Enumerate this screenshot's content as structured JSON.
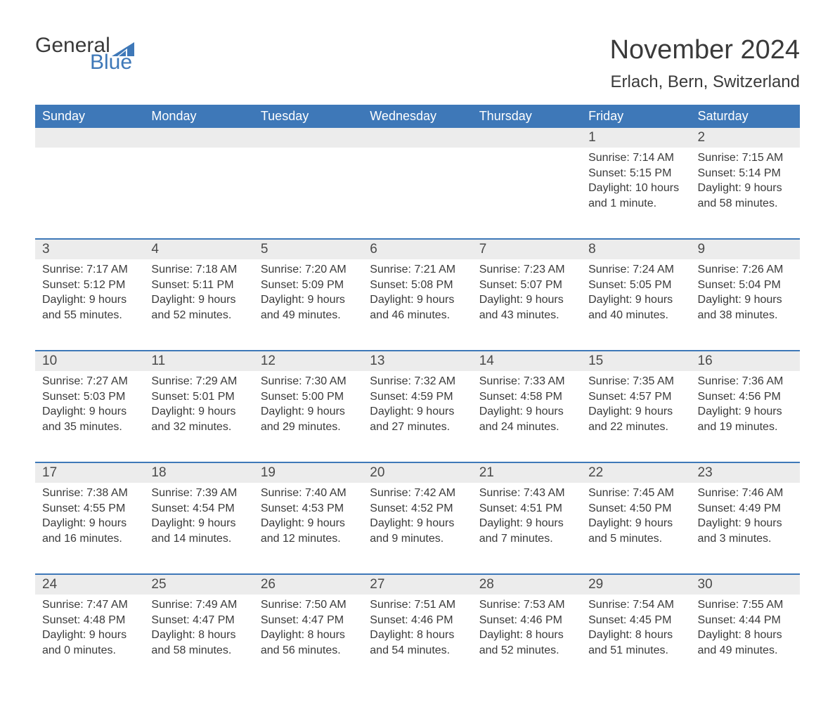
{
  "logo": {
    "text1": "General",
    "text2": "Blue",
    "triangle_color": "#3e78b8"
  },
  "title": "November 2024",
  "location": "Erlach, Bern, Switzerland",
  "colors": {
    "header_bg": "#3e78b8",
    "header_text": "#ffffff",
    "daynum_bg": "#ececec",
    "row_border": "#3e78b8",
    "body_text": "#3a3a3a",
    "page_bg": "#ffffff"
  },
  "fonts": {
    "title_size_pt": 38,
    "location_size_pt": 24,
    "header_size_pt": 18,
    "daynum_size_pt": 19,
    "body_size_pt": 16
  },
  "columns": [
    "Sunday",
    "Monday",
    "Tuesday",
    "Wednesday",
    "Thursday",
    "Friday",
    "Saturday"
  ],
  "weeks": [
    [
      null,
      null,
      null,
      null,
      null,
      {
        "n": "1",
        "sunrise": "Sunrise: 7:14 AM",
        "sunset": "Sunset: 5:15 PM",
        "day1": "Daylight: 10 hours",
        "day2": "and 1 minute."
      },
      {
        "n": "2",
        "sunrise": "Sunrise: 7:15 AM",
        "sunset": "Sunset: 5:14 PM",
        "day1": "Daylight: 9 hours",
        "day2": "and 58 minutes."
      }
    ],
    [
      {
        "n": "3",
        "sunrise": "Sunrise: 7:17 AM",
        "sunset": "Sunset: 5:12 PM",
        "day1": "Daylight: 9 hours",
        "day2": "and 55 minutes."
      },
      {
        "n": "4",
        "sunrise": "Sunrise: 7:18 AM",
        "sunset": "Sunset: 5:11 PM",
        "day1": "Daylight: 9 hours",
        "day2": "and 52 minutes."
      },
      {
        "n": "5",
        "sunrise": "Sunrise: 7:20 AM",
        "sunset": "Sunset: 5:09 PM",
        "day1": "Daylight: 9 hours",
        "day2": "and 49 minutes."
      },
      {
        "n": "6",
        "sunrise": "Sunrise: 7:21 AM",
        "sunset": "Sunset: 5:08 PM",
        "day1": "Daylight: 9 hours",
        "day2": "and 46 minutes."
      },
      {
        "n": "7",
        "sunrise": "Sunrise: 7:23 AM",
        "sunset": "Sunset: 5:07 PM",
        "day1": "Daylight: 9 hours",
        "day2": "and 43 minutes."
      },
      {
        "n": "8",
        "sunrise": "Sunrise: 7:24 AM",
        "sunset": "Sunset: 5:05 PM",
        "day1": "Daylight: 9 hours",
        "day2": "and 40 minutes."
      },
      {
        "n": "9",
        "sunrise": "Sunrise: 7:26 AM",
        "sunset": "Sunset: 5:04 PM",
        "day1": "Daylight: 9 hours",
        "day2": "and 38 minutes."
      }
    ],
    [
      {
        "n": "10",
        "sunrise": "Sunrise: 7:27 AM",
        "sunset": "Sunset: 5:03 PM",
        "day1": "Daylight: 9 hours",
        "day2": "and 35 minutes."
      },
      {
        "n": "11",
        "sunrise": "Sunrise: 7:29 AM",
        "sunset": "Sunset: 5:01 PM",
        "day1": "Daylight: 9 hours",
        "day2": "and 32 minutes."
      },
      {
        "n": "12",
        "sunrise": "Sunrise: 7:30 AM",
        "sunset": "Sunset: 5:00 PM",
        "day1": "Daylight: 9 hours",
        "day2": "and 29 minutes."
      },
      {
        "n": "13",
        "sunrise": "Sunrise: 7:32 AM",
        "sunset": "Sunset: 4:59 PM",
        "day1": "Daylight: 9 hours",
        "day2": "and 27 minutes."
      },
      {
        "n": "14",
        "sunrise": "Sunrise: 7:33 AM",
        "sunset": "Sunset: 4:58 PM",
        "day1": "Daylight: 9 hours",
        "day2": "and 24 minutes."
      },
      {
        "n": "15",
        "sunrise": "Sunrise: 7:35 AM",
        "sunset": "Sunset: 4:57 PM",
        "day1": "Daylight: 9 hours",
        "day2": "and 22 minutes."
      },
      {
        "n": "16",
        "sunrise": "Sunrise: 7:36 AM",
        "sunset": "Sunset: 4:56 PM",
        "day1": "Daylight: 9 hours",
        "day2": "and 19 minutes."
      }
    ],
    [
      {
        "n": "17",
        "sunrise": "Sunrise: 7:38 AM",
        "sunset": "Sunset: 4:55 PM",
        "day1": "Daylight: 9 hours",
        "day2": "and 16 minutes."
      },
      {
        "n": "18",
        "sunrise": "Sunrise: 7:39 AM",
        "sunset": "Sunset: 4:54 PM",
        "day1": "Daylight: 9 hours",
        "day2": "and 14 minutes."
      },
      {
        "n": "19",
        "sunrise": "Sunrise: 7:40 AM",
        "sunset": "Sunset: 4:53 PM",
        "day1": "Daylight: 9 hours",
        "day2": "and 12 minutes."
      },
      {
        "n": "20",
        "sunrise": "Sunrise: 7:42 AM",
        "sunset": "Sunset: 4:52 PM",
        "day1": "Daylight: 9 hours",
        "day2": "and 9 minutes."
      },
      {
        "n": "21",
        "sunrise": "Sunrise: 7:43 AM",
        "sunset": "Sunset: 4:51 PM",
        "day1": "Daylight: 9 hours",
        "day2": "and 7 minutes."
      },
      {
        "n": "22",
        "sunrise": "Sunrise: 7:45 AM",
        "sunset": "Sunset: 4:50 PM",
        "day1": "Daylight: 9 hours",
        "day2": "and 5 minutes."
      },
      {
        "n": "23",
        "sunrise": "Sunrise: 7:46 AM",
        "sunset": "Sunset: 4:49 PM",
        "day1": "Daylight: 9 hours",
        "day2": "and 3 minutes."
      }
    ],
    [
      {
        "n": "24",
        "sunrise": "Sunrise: 7:47 AM",
        "sunset": "Sunset: 4:48 PM",
        "day1": "Daylight: 9 hours",
        "day2": "and 0 minutes."
      },
      {
        "n": "25",
        "sunrise": "Sunrise: 7:49 AM",
        "sunset": "Sunset: 4:47 PM",
        "day1": "Daylight: 8 hours",
        "day2": "and 58 minutes."
      },
      {
        "n": "26",
        "sunrise": "Sunrise: 7:50 AM",
        "sunset": "Sunset: 4:47 PM",
        "day1": "Daylight: 8 hours",
        "day2": "and 56 minutes."
      },
      {
        "n": "27",
        "sunrise": "Sunrise: 7:51 AM",
        "sunset": "Sunset: 4:46 PM",
        "day1": "Daylight: 8 hours",
        "day2": "and 54 minutes."
      },
      {
        "n": "28",
        "sunrise": "Sunrise: 7:53 AM",
        "sunset": "Sunset: 4:46 PM",
        "day1": "Daylight: 8 hours",
        "day2": "and 52 minutes."
      },
      {
        "n": "29",
        "sunrise": "Sunrise: 7:54 AM",
        "sunset": "Sunset: 4:45 PM",
        "day1": "Daylight: 8 hours",
        "day2": "and 51 minutes."
      },
      {
        "n": "30",
        "sunrise": "Sunrise: 7:55 AM",
        "sunset": "Sunset: 4:44 PM",
        "day1": "Daylight: 8 hours",
        "day2": "and 49 minutes."
      }
    ]
  ]
}
